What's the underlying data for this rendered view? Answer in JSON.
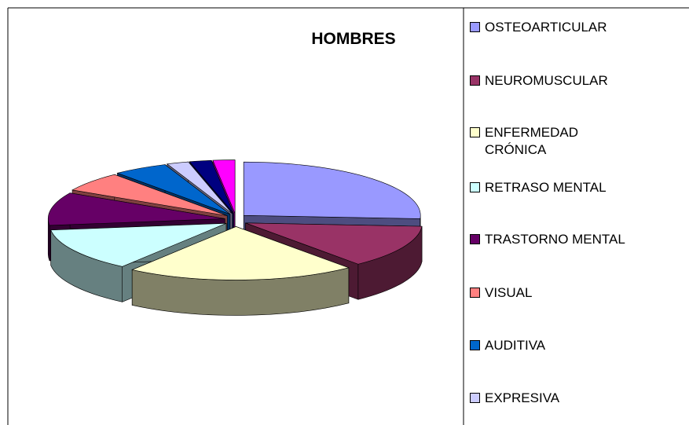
{
  "chart_data": {
    "type": "pie",
    "title": "HOMBRES",
    "categories": [
      "OSTEOARTICULAR",
      "NEUROMUSCULAR",
      "ENFERMEDAD CRÓNICA",
      "RETRASO MENTAL",
      "TRASTORNO MENTAL",
      "VISUAL",
      "AUDITIVA",
      "EXPRESIVA",
      null,
      null
    ],
    "values": [
      26,
      13,
      21,
      13,
      10,
      6,
      5,
      2,
      2,
      2
    ],
    "colors": [
      "#9999ff",
      "#993366",
      "#ffffcc",
      "#ccffff",
      "#660066",
      "#ff8080",
      "#0066cc",
      "#ccccff",
      "#000080",
      "#ff00ff"
    ]
  }
}
